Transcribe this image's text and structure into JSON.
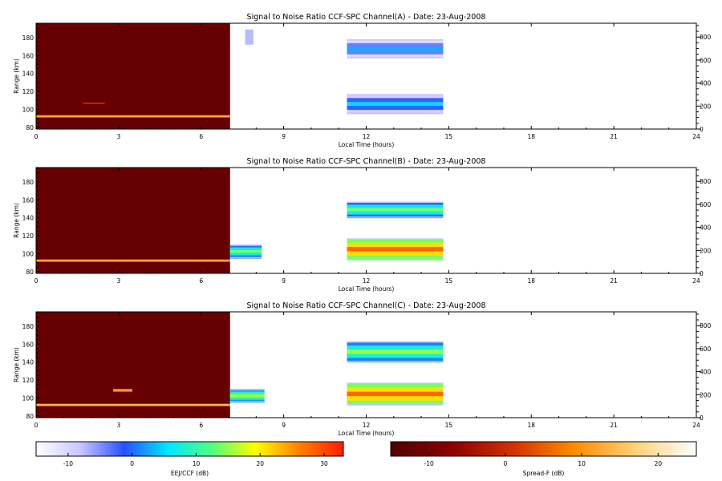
{
  "chart_data": [
    {
      "type": "heatmap",
      "title": "Signal to Noise Ratio CCF-SPC Channel(A) - Date: 23-Aug-2008",
      "xlabel": "Local Time (hours)",
      "ylabel": "Range (km)",
      "xlim": [
        0,
        24
      ],
      "ylim": [
        78,
        196
      ],
      "xticks": [
        0,
        3,
        6,
        9,
        12,
        15,
        18,
        21,
        24
      ],
      "yticks": [
        80,
        100,
        120,
        140,
        160,
        180
      ],
      "y2lim": [
        0,
        920
      ],
      "y2ticks": [
        0,
        200,
        400,
        600,
        800
      ],
      "regions": [
        {
          "kind": "spreadf_block",
          "t0": 0,
          "t1": 7.05,
          "r0": 78,
          "r1": 196,
          "value": -12
        },
        {
          "kind": "spreadf_band",
          "t0": 0,
          "t1": 7.05,
          "r0": 91,
          "r1": 93.5,
          "value": 12
        },
        {
          "kind": "spreadf_band",
          "t0": 1.7,
          "t1": 2.5,
          "r0": 106,
          "r1": 107.5,
          "value": 0
        },
        {
          "kind": "eej_layer",
          "t0": 11.3,
          "t1": 14.8,
          "r0": 95,
          "r1": 117,
          "value": 5
        },
        {
          "kind": "eej_layer",
          "t0": 11.3,
          "t1": 14.8,
          "r0": 157,
          "r1": 178,
          "value": 3
        },
        {
          "kind": "eej_sparse",
          "t0": 7.6,
          "t1": 7.9,
          "r0": 172,
          "r1": 189,
          "value": -5
        }
      ]
    },
    {
      "type": "heatmap",
      "title": "Signal to Noise Ratio CCF-SPC Channel(B) - Date: 23-Aug-2008",
      "xlabel": "Local Time (hours)",
      "ylabel": "Range (km)",
      "xlim": [
        0,
        24
      ],
      "ylim": [
        78,
        196
      ],
      "xticks": [
        0,
        3,
        6,
        9,
        12,
        15,
        18,
        21,
        24
      ],
      "yticks": [
        80,
        100,
        120,
        140,
        160,
        180
      ],
      "y2lim": [
        0,
        920
      ],
      "y2ticks": [
        0,
        200,
        400,
        600,
        800
      ],
      "regions": [
        {
          "kind": "spreadf_block",
          "t0": 0,
          "t1": 7.05,
          "r0": 78,
          "r1": 196,
          "value": -12
        },
        {
          "kind": "spreadf_band",
          "t0": 0,
          "t1": 7.05,
          "r0": 91,
          "r1": 93.5,
          "value": 12
        },
        {
          "kind": "eej_layer",
          "t0": 7.05,
          "t1": 8.2,
          "r0": 95,
          "r1": 110,
          "value": 14
        },
        {
          "kind": "eej_layer",
          "t0": 11.3,
          "t1": 14.8,
          "r0": 93,
          "r1": 117,
          "value": 28
        },
        {
          "kind": "eej_layer",
          "t0": 11.3,
          "t1": 14.8,
          "r0": 140,
          "r1": 158,
          "value": 14
        }
      ]
    },
    {
      "type": "heatmap",
      "title": "Signal to Noise Ratio CCF-SPC Channel(C) - Date: 23-Aug-2008",
      "xlabel": "Local Time (hours)",
      "ylabel": "Range (km)",
      "xlim": [
        0,
        24
      ],
      "ylim": [
        78,
        196
      ],
      "xticks": [
        0,
        3,
        6,
        9,
        12,
        15,
        18,
        21,
        24
      ],
      "yticks": [
        80,
        100,
        120,
        140,
        160,
        180
      ],
      "y2lim": [
        0,
        920
      ],
      "y2ticks": [
        0,
        200,
        400,
        600,
        800
      ],
      "regions": [
        {
          "kind": "spreadf_block",
          "t0": 0,
          "t1": 7.05,
          "r0": 78,
          "r1": 196,
          "value": -12
        },
        {
          "kind": "spreadf_band",
          "t0": 0,
          "t1": 7.05,
          "r0": 91,
          "r1": 93.5,
          "value": 14
        },
        {
          "kind": "spreadf_band",
          "t0": 2.8,
          "t1": 3.5,
          "r0": 107,
          "r1": 110,
          "value": 10
        },
        {
          "kind": "eej_layer",
          "t0": 7.05,
          "t1": 8.3,
          "r0": 95,
          "r1": 110,
          "value": 16
        },
        {
          "kind": "eej_layer",
          "t0": 11.3,
          "t1": 14.8,
          "r0": 92,
          "r1": 117,
          "value": 28
        },
        {
          "kind": "eej_layer",
          "t0": 11.3,
          "t1": 14.8,
          "r0": 140,
          "r1": 163,
          "value": 15
        }
      ]
    }
  ],
  "colorbars": [
    {
      "label": "EEJ/CCF (dB)",
      "range": [
        -15,
        33
      ],
      "ticks": [
        -10,
        0,
        10,
        20,
        30
      ],
      "stops": [
        "#ffffff",
        "#c8c8ff",
        "#2850ff",
        "#00e6ff",
        "#50ff80",
        "#ffff00",
        "#ff8000",
        "#ff1e00"
      ]
    },
    {
      "label": "Spread-F (dB)",
      "range": [
        -15,
        25
      ],
      "ticks": [
        -10,
        0,
        10,
        20
      ],
      "stops": [
        "#500000",
        "#8c0000",
        "#d23200",
        "#ff8c00",
        "#ffd278",
        "#ffffff"
      ]
    }
  ]
}
